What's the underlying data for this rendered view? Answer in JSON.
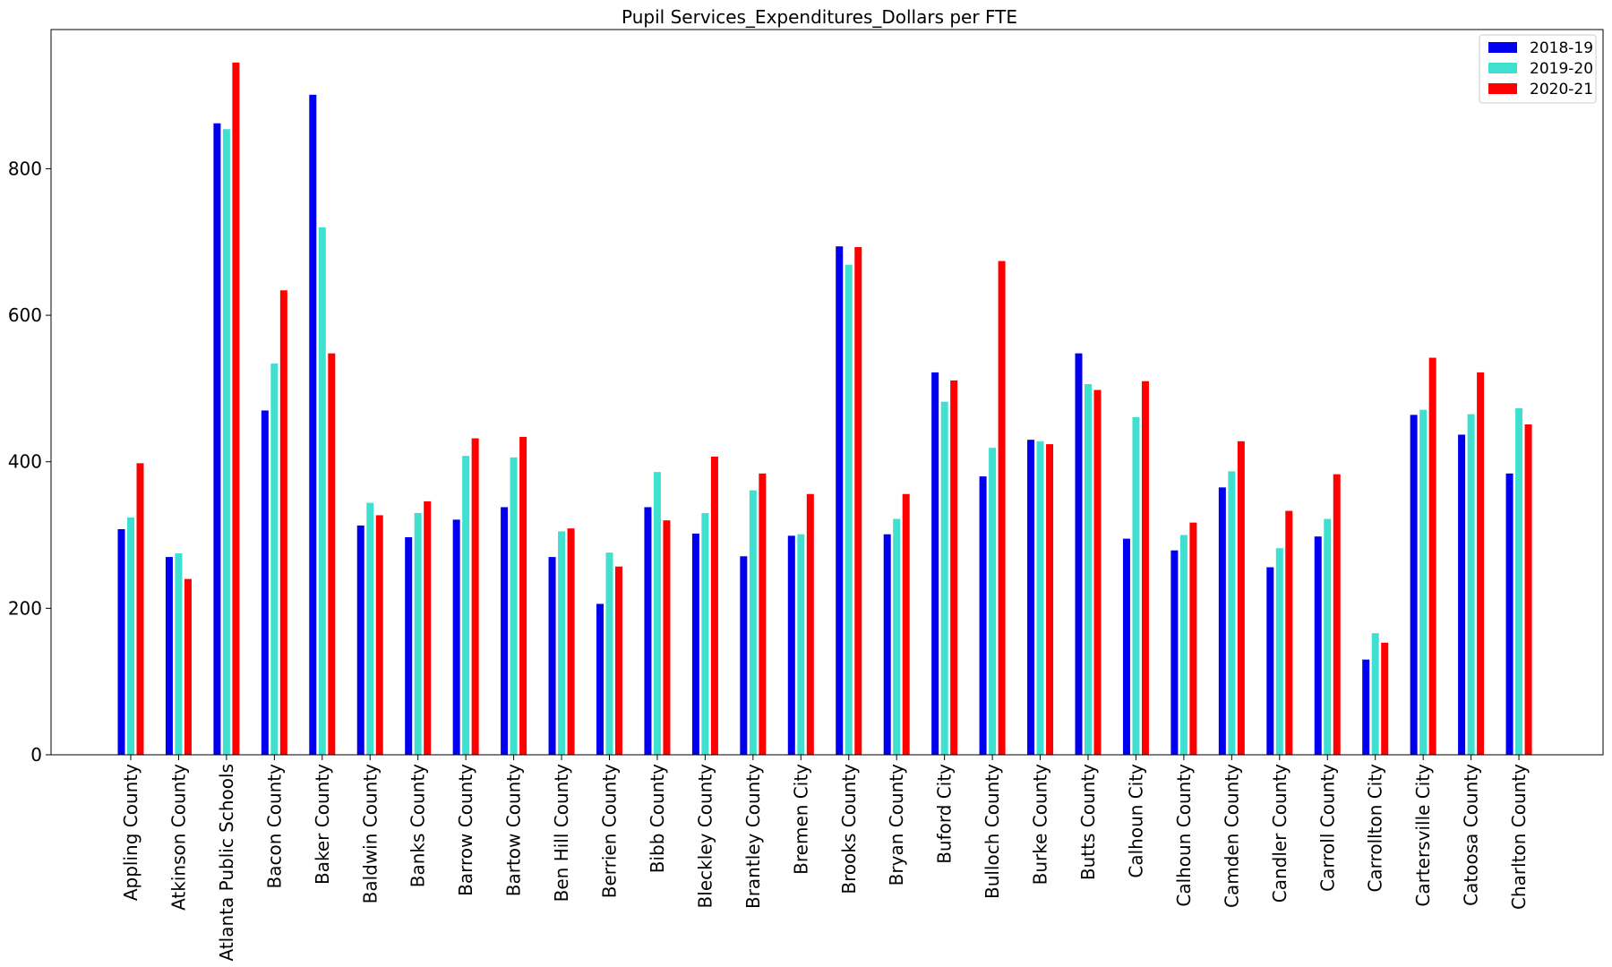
{
  "chart_data": {
    "type": "bar",
    "title": "Pupil Services_Expenditures_Dollars per FTE",
    "xlabel": "",
    "ylabel": "",
    "ylim": [
      0,
      990
    ],
    "yticks": [
      0,
      200,
      400,
      600,
      800
    ],
    "legend_position": "top-right",
    "grid": false,
    "categories": [
      "Appling County",
      "Atkinson County",
      "Atlanta Public Schools",
      "Bacon County",
      "Baker County",
      "Baldwin County",
      "Banks County",
      "Barrow County",
      "Bartow County",
      "Ben Hill County",
      "Berrien County",
      "Bibb County",
      "Bleckley County",
      "Brantley County",
      "Bremen City",
      "Brooks County",
      "Bryan County",
      "Buford City",
      "Bulloch County",
      "Burke County",
      "Butts County",
      "Calhoun City",
      "Calhoun County",
      "Camden County",
      "Candler County",
      "Carroll County",
      "Carrollton City",
      "Cartersville City",
      "Catoosa County",
      "Charlton County"
    ],
    "series": [
      {
        "name": "2018-19",
        "color": "#0000ee",
        "values": [
          308,
          270,
          862,
          470,
          901,
          313,
          297,
          321,
          338,
          270,
          206,
          338,
          302,
          271,
          299,
          694,
          301,
          522,
          380,
          430,
          548,
          295,
          279,
          365,
          256,
          298,
          130,
          464,
          437,
          384
        ]
      },
      {
        "name": "2019-20",
        "color": "#40e0d0",
        "values": [
          324,
          275,
          854,
          534,
          720,
          344,
          330,
          408,
          406,
          305,
          276,
          386,
          330,
          361,
          301,
          669,
          322,
          482,
          419,
          428,
          506,
          461,
          300,
          387,
          282,
          322,
          166,
          471,
          465,
          473
        ]
      },
      {
        "name": "2020-21",
        "color": "#ff0000",
        "values": [
          398,
          240,
          945,
          634,
          548,
          327,
          346,
          432,
          434,
          309,
          257,
          320,
          407,
          384,
          356,
          693,
          356,
          511,
          674,
          424,
          498,
          510,
          317,
          428,
          333,
          383,
          153,
          542,
          522,
          451
        ]
      }
    ]
  }
}
